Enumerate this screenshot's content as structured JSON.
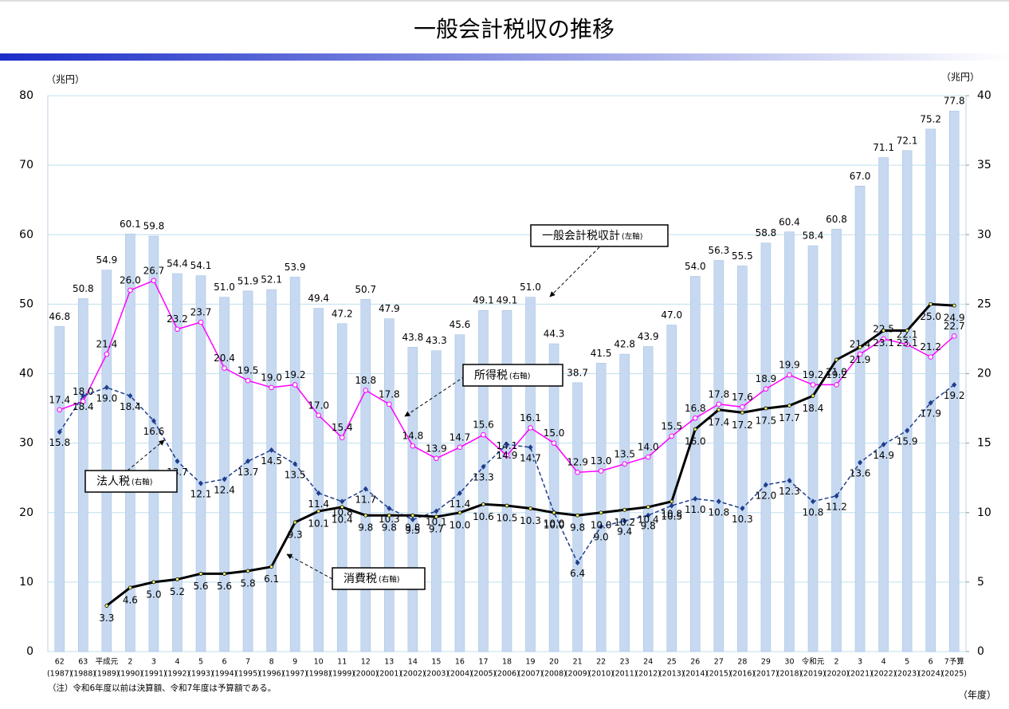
{
  "chart_data": {
    "type": "bar",
    "title": "一般会計税収の推移",
    "y_unit": "（兆円）",
    "y2_unit": "（兆円）",
    "x_unit": "（年度）",
    "note": "（注）令和6年度以前は決算額、令和7年度は予算額である。",
    "categories": [
      "62",
      "63",
      "平成元",
      "2",
      "3",
      "4",
      "5",
      "6",
      "7",
      "8",
      "9",
      "10",
      "11",
      "12",
      "13",
      "14",
      "15",
      "16",
      "17",
      "18",
      "19",
      "20",
      "21",
      "22",
      "23",
      "24",
      "25",
      "26",
      "27",
      "28",
      "29",
      "30",
      "令和元",
      "2",
      "3",
      "4",
      "5",
      "6",
      "7予算"
    ],
    "category_years": [
      "(1987)",
      "(1988)",
      "(1989)",
      "(1990)",
      "(1991)",
      "(1992)",
      "(1993)",
      "(1994)",
      "(1995)",
      "(1996)",
      "(1997)",
      "(1998)",
      "(1999)",
      "(2000)",
      "(2001)",
      "(2002)",
      "(2003)",
      "(2004)",
      "(2005)",
      "(2006)",
      "(2007)",
      "(2008)",
      "(2009)",
      "(2010)",
      "(2011)",
      "(2012)",
      "(2013)",
      "(2014)",
      "(2015)",
      "(2016)",
      "(2017)",
      "(2018)",
      "(2019)",
      "(2020)",
      "(2021)",
      "(2022)",
      "(2023)",
      "(2024)",
      "(2025)"
    ],
    "ylim": [
      0,
      80
    ],
    "yticks": [
      0,
      10,
      20,
      30,
      40,
      50,
      60,
      70,
      80
    ],
    "y2lim": [
      0,
      40
    ],
    "y2ticks": [
      0,
      5,
      10,
      15,
      20,
      25,
      30,
      35,
      40
    ],
    "grid": true,
    "series": [
      {
        "name": "一般会計税収計",
        "axis_note": "(左軸)",
        "type": "bar",
        "color": "#c6d9f0",
        "values": [
          46.8,
          50.8,
          54.9,
          60.1,
          59.8,
          54.4,
          54.1,
          51.0,
          51.9,
          52.1,
          53.9,
          49.4,
          47.2,
          50.7,
          47.9,
          43.8,
          43.3,
          45.6,
          49.1,
          49.1,
          51.0,
          44.3,
          38.7,
          41.5,
          42.8,
          43.9,
          47.0,
          54.0,
          56.3,
          55.5,
          58.8,
          60.4,
          58.4,
          60.8,
          67.0,
          71.1,
          72.1,
          75.2,
          77.8
        ],
        "value_labels": [
          "46.8",
          "50.8",
          "54.9",
          "60.1",
          "59.8",
          "54.4",
          "54.1",
          "51.0",
          "51.9",
          "52.1",
          "53.9",
          "49.4",
          "47.2",
          "50.7",
          "47.9",
          "43.8",
          "43.3",
          "45.6",
          "49.1",
          "49.1",
          "51.0",
          "44.3",
          "38.7",
          "41.5",
          "42.8",
          "43.9",
          "47.0",
          "54.0",
          "56.3",
          "55.5",
          "58.8",
          "60.4",
          "58.4",
          "60.8",
          "67.0",
          "71.1",
          "72.1",
          "75.2",
          "77.8"
        ]
      },
      {
        "name": "所得税",
        "axis_note": "(右軸)",
        "type": "line",
        "axis": "y2",
        "color": "#ff00ff",
        "values": [
          17.4,
          18.0,
          21.4,
          26.0,
          26.7,
          23.2,
          23.7,
          20.4,
          19.5,
          19.0,
          19.2,
          17.0,
          15.4,
          18.8,
          17.8,
          14.8,
          13.9,
          14.7,
          15.6,
          14.1,
          16.1,
          15.0,
          12.9,
          13.0,
          13.5,
          14.0,
          15.5,
          16.8,
          17.8,
          17.6,
          18.9,
          19.9,
          19.2,
          19.2,
          21.4,
          22.5,
          22.1,
          21.2,
          22.7
        ],
        "value_labels": [
          "17.4",
          "18.0",
          "21.4",
          "26.0",
          "26.7",
          "23.2",
          "23.7",
          "20.4",
          "19.5",
          "19.0",
          "19.2",
          "17.0",
          "15.4",
          "18.8",
          "17.8",
          "14.8",
          "13.9",
          "14.7",
          "15.6",
          "14.1",
          "16.1",
          "15.0",
          "12.9",
          "13.0",
          "13.5",
          "14.0",
          "15.5",
          "16.8",
          "17.8",
          "17.6",
          "18.9",
          "19.9",
          "19.2",
          "19.2",
          "21.4",
          "22.5",
          "22.1",
          "21.2",
          "22.7"
        ]
      },
      {
        "name": "法人税",
        "axis_note": "(右軸)",
        "type": "line",
        "axis": "y2",
        "color": "#1f3d8c",
        "dashed": true,
        "values": [
          15.8,
          18.4,
          19.0,
          18.4,
          16.6,
          13.7,
          12.1,
          12.4,
          13.7,
          14.5,
          13.5,
          11.4,
          10.8,
          11.7,
          10.3,
          9.5,
          10.1,
          11.4,
          13.3,
          14.9,
          14.7,
          10.0,
          6.4,
          9.0,
          9.4,
          9.8,
          10.5,
          11.0,
          10.8,
          10.3,
          12.0,
          12.3,
          10.8,
          11.2,
          13.6,
          14.9,
          15.9,
          17.9,
          19.2
        ],
        "value_labels": [
          "15.8",
          "18.4",
          "19.0",
          "18.4",
          "16.6",
          "13.7",
          "12.1",
          "12.4",
          "13.7",
          "14.5",
          "13.5",
          "11.4",
          "10.8",
          "11.7",
          "10.3",
          "9.5",
          "10.1",
          "11.4",
          "13.3",
          "14.9",
          "14.7",
          "10.0",
          "6.4",
          "9.0",
          "9.4",
          "9.8",
          "10.5",
          "11.0",
          "10.8",
          "10.3",
          "12.0",
          "12.3",
          "10.8",
          "11.2",
          "13.6",
          "14.9",
          "15.9",
          "17.9",
          "19.2"
        ]
      },
      {
        "name": "消費税",
        "axis_note": "(右軸)",
        "type": "line",
        "axis": "y2",
        "color": "#000000",
        "values": [
          null,
          null,
          3.3,
          4.6,
          5.0,
          5.2,
          5.6,
          5.6,
          5.8,
          6.1,
          9.3,
          10.1,
          10.4,
          9.8,
          9.8,
          9.8,
          9.7,
          10.0,
          10.6,
          10.5,
          10.3,
          10.0,
          9.8,
          10.0,
          10.2,
          10.4,
          10.8,
          16.0,
          17.4,
          17.2,
          17.5,
          17.7,
          18.4,
          21.0,
          21.9,
          23.1,
          23.1,
          25.0,
          24.9
        ],
        "value_labels": [
          null,
          null,
          "3.3",
          "4.6",
          "5.0",
          "5.2",
          "5.6",
          "5.6",
          "5.8",
          "6.1",
          "9.3",
          "10.1",
          "10.4",
          "9.8",
          "9.8",
          "9.8",
          "9.7",
          "10.0",
          "10.6",
          "10.5",
          "10.3",
          "10.0",
          "9.8",
          "10.0",
          "10.2",
          "10.4",
          "10.8",
          "16.0",
          "17.4",
          "17.2",
          "17.5",
          "17.7",
          "18.4",
          "21.0",
          "21.9",
          "23.1",
          "23.1",
          "25.0",
          "24.9"
        ]
      }
    ]
  }
}
